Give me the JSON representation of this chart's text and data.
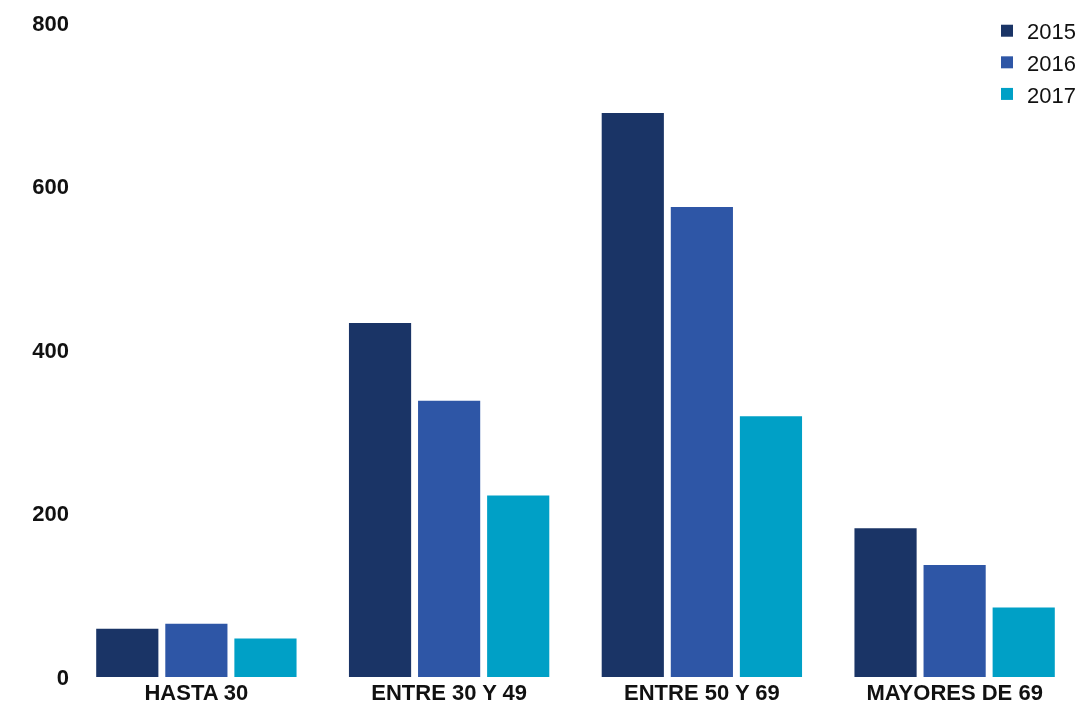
{
  "chart_data": {
    "type": "bar",
    "categories": [
      "HASTA 30",
      "ENTRE 30 Y 49",
      "ENTRE 50 Y 69",
      "MAYORES DE 69"
    ],
    "series": [
      {
        "name": "2015",
        "color": "#1a3466",
        "values": [
          59,
          433,
          690,
          182
        ]
      },
      {
        "name": "2016",
        "color": "#2e56a6",
        "values": [
          65,
          338,
          575,
          137
        ]
      },
      {
        "name": "2017",
        "color": "#00a0c6",
        "values": [
          47,
          222,
          319,
          85
        ]
      }
    ],
    "ylim": [
      0,
      800
    ],
    "yticks": [
      0,
      200,
      400,
      600,
      800
    ],
    "grid": false,
    "legend": "top right"
  }
}
